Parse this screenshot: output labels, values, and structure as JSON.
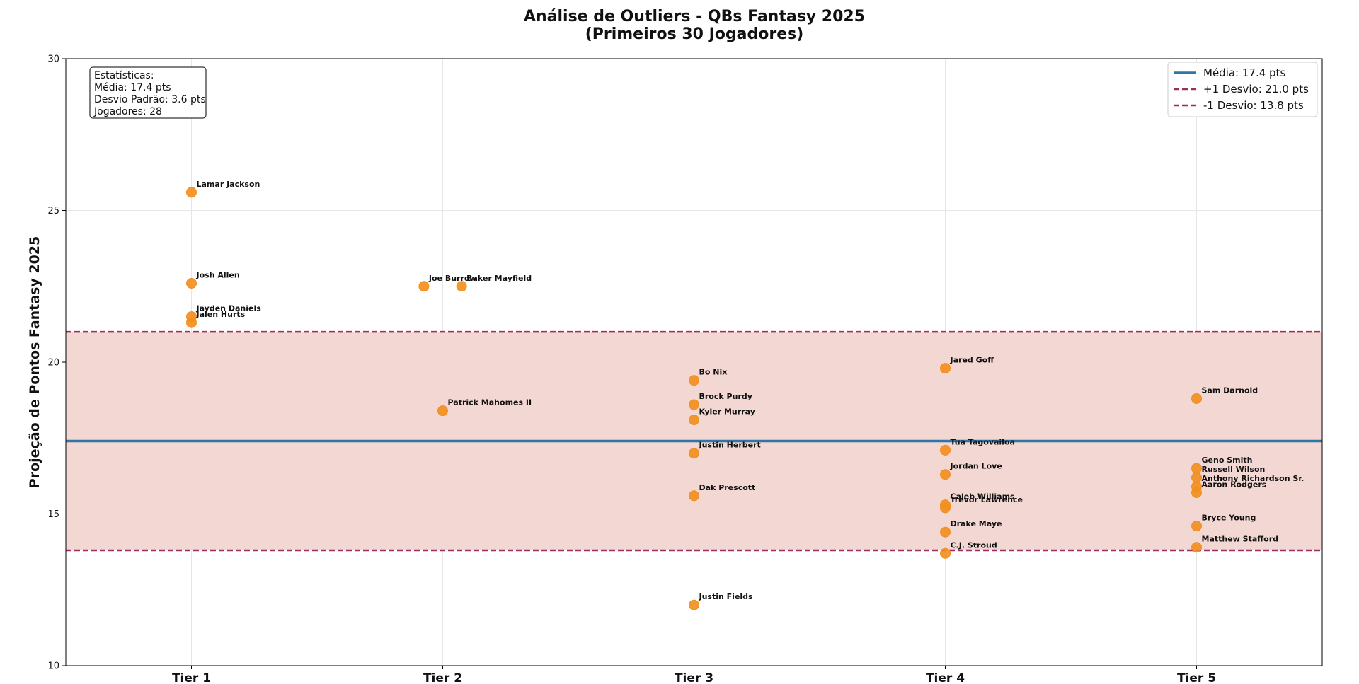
{
  "chart_data": {
    "type": "scatter",
    "title": [
      "Análise de Outliers - QBs Fantasy 2025",
      "(Primeiros 30 Jogadores)"
    ],
    "xlabel": "",
    "ylabel": "Projeção de Pontos Fantasy 2025",
    "ylim": [
      10,
      30
    ],
    "yticks": [
      10,
      15,
      20,
      25,
      30
    ],
    "categories": [
      "Tier 1",
      "Tier 2",
      "Tier 3",
      "Tier 4",
      "Tier 5"
    ],
    "grid": true,
    "legend_position": "top-right",
    "colors": {
      "points": "#f28e1c",
      "mean_line": "#2e76a6",
      "std_lines": "#a02c5e",
      "band": "#f3d7d3"
    },
    "reference_lines": {
      "mean": 17.4,
      "plus_one_std": 21.0,
      "minus_one_std": 13.8
    },
    "legend": [
      {
        "label": "Média: 17.4 pts",
        "style": "solid"
      },
      {
        "label": "+1 Desvio: 21.0 pts",
        "style": "dashed"
      },
      {
        "label": "-1 Desvio: 13.8 pts",
        "style": "dashed"
      }
    ],
    "stats_box": [
      "Estatísticas:",
      "Média: 17.4 pts",
      "Desvio Padrão: 3.6 pts",
      "Jogadores: 28"
    ],
    "points": [
      {
        "name": "Lamar Jackson",
        "x": 1,
        "y": 25.6
      },
      {
        "name": "Josh Allen",
        "x": 1,
        "y": 22.6
      },
      {
        "name": "Jayden Daniels",
        "x": 1,
        "y": 21.5
      },
      {
        "name": "Jalen Hurts",
        "x": 1,
        "y": 21.3
      },
      {
        "name": "Joe Burrow",
        "x": 1.925,
        "y": 22.5
      },
      {
        "name": "Baker Mayfield",
        "x": 2.075,
        "y": 22.5
      },
      {
        "name": "Patrick Mahomes II",
        "x": 2,
        "y": 18.4
      },
      {
        "name": "Bo Nix",
        "x": 3,
        "y": 19.4
      },
      {
        "name": "Brock Purdy",
        "x": 3,
        "y": 18.6
      },
      {
        "name": "Kyler Murray",
        "x": 3,
        "y": 18.1
      },
      {
        "name": "Justin Herbert",
        "x": 3,
        "y": 17.0
      },
      {
        "name": "Dak Prescott",
        "x": 3,
        "y": 15.6
      },
      {
        "name": "Justin Fields",
        "x": 3,
        "y": 12.0
      },
      {
        "name": "Jared Goff",
        "x": 4,
        "y": 19.8
      },
      {
        "name": "Tua Tagovailoa",
        "x": 4,
        "y": 17.1
      },
      {
        "name": "Jordan Love",
        "x": 4,
        "y": 16.3
      },
      {
        "name": "Caleb Williams",
        "x": 4,
        "y": 15.3
      },
      {
        "name": "Trevor Lawrence",
        "x": 4,
        "y": 15.2
      },
      {
        "name": "Drake Maye",
        "x": 4,
        "y": 14.4
      },
      {
        "name": "C.J. Stroud",
        "x": 4,
        "y": 13.7
      },
      {
        "name": "Sam Darnold",
        "x": 5,
        "y": 18.8
      },
      {
        "name": "Geno Smith",
        "x": 5,
        "y": 16.5
      },
      {
        "name": "Russell Wilson",
        "x": 5,
        "y": 16.2
      },
      {
        "name": "Anthony Richardson Sr.",
        "x": 5,
        "y": 15.9
      },
      {
        "name": "Aaron Rodgers",
        "x": 5,
        "y": 15.7
      },
      {
        "name": "Bryce Young",
        "x": 5,
        "y": 14.6
      },
      {
        "name": "Matthew Stafford",
        "x": 5,
        "y": 13.9
      }
    ]
  }
}
